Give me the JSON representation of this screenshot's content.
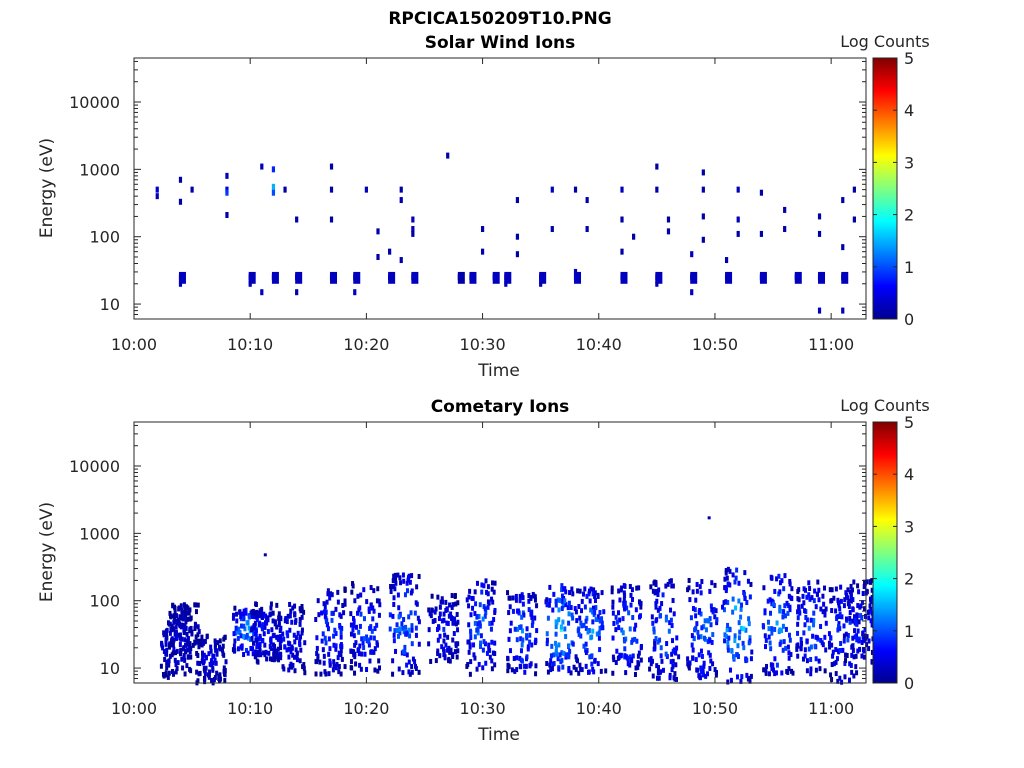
{
  "figure_title": "RPCICA150209T10.PNG",
  "colorbar": {
    "label": "Log Counts",
    "ticks": [
      "0",
      "1",
      "2",
      "3",
      "4",
      "5"
    ],
    "range": [
      0,
      5
    ]
  },
  "colors": {
    "axis": "#262626",
    "colormap": "jet",
    "background": "#ffffff"
  },
  "chart_data": [
    {
      "type": "heatmap",
      "title": "Solar Wind Ions",
      "xlabel": "Time",
      "ylabel": "Energy (eV)",
      "yscale": "log",
      "ylim": [
        6,
        45000
      ],
      "xlim": [
        "10:00",
        "11:03"
      ],
      "xticks": [
        "10:00",
        "10:10",
        "10:20",
        "10:30",
        "10:40",
        "10:50",
        "11:00"
      ],
      "yticks": [
        "10",
        "100",
        "1000",
        "10000"
      ],
      "cells": [
        {
          "t": "10:02",
          "e": 500,
          "v": 0.4
        },
        {
          "t": "10:02",
          "e": 400,
          "v": 0.3
        },
        {
          "t": "10:04",
          "e": 700,
          "v": 0.2
        },
        {
          "t": "10:04",
          "e": 330,
          "v": 0.2
        },
        {
          "t": "10:04",
          "e": 25,
          "v": 0.3
        },
        {
          "t": "10:04",
          "e": 20,
          "v": 0.3
        },
        {
          "t": "10:05",
          "e": 500,
          "v": 0.2
        },
        {
          "t": "10:08",
          "e": 500,
          "v": 0.5
        },
        {
          "t": "10:08",
          "e": 450,
          "v": 0.9
        },
        {
          "t": "10:08",
          "e": 800,
          "v": 0.3
        },
        {
          "t": "10:08",
          "e": 210,
          "v": 0.2
        },
        {
          "t": "10:10",
          "e": 25,
          "v": 0.3
        },
        {
          "t": "10:10",
          "e": 20,
          "v": 0.3
        },
        {
          "t": "10:11",
          "e": 1100,
          "v": 0.3
        },
        {
          "t": "10:11",
          "e": 15,
          "v": 0.3
        },
        {
          "t": "10:12",
          "e": 550,
          "v": 1.5
        },
        {
          "t": "10:12",
          "e": 450,
          "v": 1.0
        },
        {
          "t": "10:12",
          "e": 1000,
          "v": 0.8
        },
        {
          "t": "10:12",
          "e": 25,
          "v": 0.3
        },
        {
          "t": "10:13",
          "e": 500,
          "v": 0.2
        },
        {
          "t": "10:14",
          "e": 25,
          "v": 0.3
        },
        {
          "t": "10:14",
          "e": 180,
          "v": 0.2
        },
        {
          "t": "10:14",
          "e": 15,
          "v": 0.2
        },
        {
          "t": "10:17",
          "e": 25,
          "v": 0.3
        },
        {
          "t": "10:17",
          "e": 1100,
          "v": 0.2
        },
        {
          "t": "10:17",
          "e": 500,
          "v": 0.2
        },
        {
          "t": "10:17",
          "e": 180,
          "v": 0.2
        },
        {
          "t": "10:19",
          "e": 25,
          "v": 0.3
        },
        {
          "t": "10:19",
          "e": 15,
          "v": 0.3
        },
        {
          "t": "10:20",
          "e": 500,
          "v": 0.3
        },
        {
          "t": "10:21",
          "e": 120,
          "v": 0.2
        },
        {
          "t": "10:21",
          "e": 50,
          "v": 0.2
        },
        {
          "t": "10:22",
          "e": 25,
          "v": 0.3
        },
        {
          "t": "10:22",
          "e": 60,
          "v": 0.2
        },
        {
          "t": "10:23",
          "e": 500,
          "v": 0.2
        },
        {
          "t": "10:23",
          "e": 350,
          "v": 0.2
        },
        {
          "t": "10:23",
          "e": 45,
          "v": 0.2
        },
        {
          "t": "10:24",
          "e": 25,
          "v": 0.3
        },
        {
          "t": "10:24",
          "e": 180,
          "v": 0.3
        },
        {
          "t": "10:24",
          "e": 130,
          "v": 0.3
        },
        {
          "t": "10:24",
          "e": 110,
          "v": 0.2
        },
        {
          "t": "10:27",
          "e": 1600,
          "v": 0.2
        },
        {
          "t": "10:28",
          "e": 25,
          "v": 0.2
        },
        {
          "t": "10:29",
          "e": 25,
          "v": 0.3
        },
        {
          "t": "10:30",
          "e": 130,
          "v": 0.2
        },
        {
          "t": "10:30",
          "e": 60,
          "v": 0.2
        },
        {
          "t": "10:31",
          "e": 25,
          "v": 0.3
        },
        {
          "t": "10:32",
          "e": 25,
          "v": 0.3
        },
        {
          "t": "10:32",
          "e": 20,
          "v": 0.3
        },
        {
          "t": "10:33",
          "e": 350,
          "v": 0.2
        },
        {
          "t": "10:33",
          "e": 100,
          "v": 0.2
        },
        {
          "t": "10:33",
          "e": 55,
          "v": 0.2
        },
        {
          "t": "10:35",
          "e": 25,
          "v": 0.3
        },
        {
          "t": "10:35",
          "e": 20,
          "v": 0.3
        },
        {
          "t": "10:36",
          "e": 500,
          "v": 0.3
        },
        {
          "t": "10:36",
          "e": 130,
          "v": 0.2
        },
        {
          "t": "10:38",
          "e": 25,
          "v": 0.3
        },
        {
          "t": "10:38",
          "e": 30,
          "v": 0.3
        },
        {
          "t": "10:38",
          "e": 500,
          "v": 0.2
        },
        {
          "t": "10:39",
          "e": 350,
          "v": 0.2
        },
        {
          "t": "10:39",
          "e": 130,
          "v": 0.2
        },
        {
          "t": "10:42",
          "e": 25,
          "v": 0.3
        },
        {
          "t": "10:42",
          "e": 500,
          "v": 0.3
        },
        {
          "t": "10:42",
          "e": 180,
          "v": 0.2
        },
        {
          "t": "10:42",
          "e": 60,
          "v": 0.2
        },
        {
          "t": "10:43",
          "e": 100,
          "v": 0.2
        },
        {
          "t": "10:45",
          "e": 25,
          "v": 0.3
        },
        {
          "t": "10:45",
          "e": 1100,
          "v": 0.2
        },
        {
          "t": "10:45",
          "e": 500,
          "v": 0.2
        },
        {
          "t": "10:45",
          "e": 20,
          "v": 0.3
        },
        {
          "t": "10:46",
          "e": 180,
          "v": 0.2
        },
        {
          "t": "10:46",
          "e": 120,
          "v": 0.2
        },
        {
          "t": "10:48",
          "e": 25,
          "v": 0.3
        },
        {
          "t": "10:48",
          "e": 55,
          "v": 0.3
        },
        {
          "t": "10:48",
          "e": 15,
          "v": 0.3
        },
        {
          "t": "10:49",
          "e": 900,
          "v": 0.2
        },
        {
          "t": "10:49",
          "e": 500,
          "v": 0.2
        },
        {
          "t": "10:49",
          "e": 200,
          "v": 0.2
        },
        {
          "t": "10:49",
          "e": 90,
          "v": 0.2
        },
        {
          "t": "10:51",
          "e": 25,
          "v": 0.3
        },
        {
          "t": "10:51",
          "e": 45,
          "v": 0.2
        },
        {
          "t": "10:52",
          "e": 500,
          "v": 0.3
        },
        {
          "t": "10:52",
          "e": 180,
          "v": 0.3
        },
        {
          "t": "10:52",
          "e": 110,
          "v": 0.2
        },
        {
          "t": "10:54",
          "e": 25,
          "v": 0.3
        },
        {
          "t": "10:54",
          "e": 450,
          "v": 0.2
        },
        {
          "t": "10:54",
          "e": 110,
          "v": 0.2
        },
        {
          "t": "10:56",
          "e": 130,
          "v": 0.2
        },
        {
          "t": "10:56",
          "e": 250,
          "v": 0.2
        },
        {
          "t": "10:57",
          "e": 25,
          "v": 0.3
        },
        {
          "t": "10:59",
          "e": 25,
          "v": 0.3
        },
        {
          "t": "10:59",
          "e": 200,
          "v": 0.2
        },
        {
          "t": "10:59",
          "e": 110,
          "v": 0.2
        },
        {
          "t": "10:59",
          "e": 8,
          "v": 0.3
        },
        {
          "t": "11:01",
          "e": 25,
          "v": 0.3
        },
        {
          "t": "11:01",
          "e": 350,
          "v": 0.2
        },
        {
          "t": "11:01",
          "e": 70,
          "v": 0.2
        },
        {
          "t": "11:01",
          "e": 8,
          "v": 0.3
        },
        {
          "t": "11:02",
          "e": 500,
          "v": 0.2
        },
        {
          "t": "11:02",
          "e": 180,
          "v": 0.2
        }
      ]
    },
    {
      "type": "heatmap",
      "title": "Cometary Ions",
      "xlabel": "Time",
      "ylabel": "Energy (eV)",
      "yscale": "log",
      "ylim": [
        6,
        45000
      ],
      "xlim": [
        "10:00",
        "11:03"
      ],
      "xticks": [
        "10:00",
        "10:10",
        "10:20",
        "10:30",
        "10:40",
        "10:50",
        "11:00"
      ],
      "yticks": [
        "10",
        "100",
        "1000",
        "10000"
      ],
      "bursts": [
        {
          "t": "10:03.5",
          "emin": 7,
          "emax": 60,
          "v": 0.4
        },
        {
          "t": "10:04.2",
          "emin": 15,
          "emax": 90,
          "v": 0.3
        },
        {
          "t": "10:06.5",
          "emin": 6,
          "emax": 30,
          "v": 0.4
        },
        {
          "t": "10:09.7",
          "emin": 15,
          "emax": 80,
          "v": 1.0
        },
        {
          "t": "10:11.2",
          "emin": 12,
          "emax": 90,
          "v": 0.5
        },
        {
          "t": "10:13.3",
          "emin": 8,
          "emax": 90,
          "v": 0.5
        },
        {
          "t": "10:16.8",
          "emin": 8,
          "emax": 150,
          "v": 0.7
        },
        {
          "t": "10:19.8",
          "emin": 8,
          "emax": 180,
          "v": 0.7
        },
        {
          "t": "10:23.2",
          "emin": 8,
          "emax": 250,
          "v": 0.9
        },
        {
          "t": "10:26.5",
          "emin": 12,
          "emax": 120,
          "v": 0.5
        },
        {
          "t": "10:29.8",
          "emin": 8,
          "emax": 200,
          "v": 0.8
        },
        {
          "t": "10:33.3",
          "emin": 8,
          "emax": 150,
          "v": 0.8
        },
        {
          "t": "10:36.6",
          "emin": 8,
          "emax": 180,
          "v": 1.2
        },
        {
          "t": "10:39.2",
          "emin": 8,
          "emax": 160,
          "v": 0.9
        },
        {
          "t": "10:42.3",
          "emin": 8,
          "emax": 170,
          "v": 0.8
        },
        {
          "t": "10:45.5",
          "emin": 6,
          "emax": 200,
          "v": 0.8
        },
        {
          "t": "10:48.8",
          "emin": 7,
          "emax": 200,
          "v": 0.9
        },
        {
          "t": "10:51.8",
          "emin": 6,
          "emax": 300,
          "v": 1.2
        },
        {
          "t": "10:55.3",
          "emin": 8,
          "emax": 250,
          "v": 1.0
        },
        {
          "t": "10:58.2",
          "emin": 8,
          "emax": 200,
          "v": 0.8
        },
        {
          "t": "11:01.0",
          "emin": 6,
          "emax": 180,
          "v": 0.7
        },
        {
          "t": "11:02.3",
          "emin": 12,
          "emax": 200,
          "v": 0.6
        }
      ],
      "points": [
        {
          "t": "10:11.3",
          "e": 480,
          "v": 0.2
        },
        {
          "t": "10:49.5",
          "e": 1700,
          "v": 0.2
        }
      ]
    }
  ]
}
